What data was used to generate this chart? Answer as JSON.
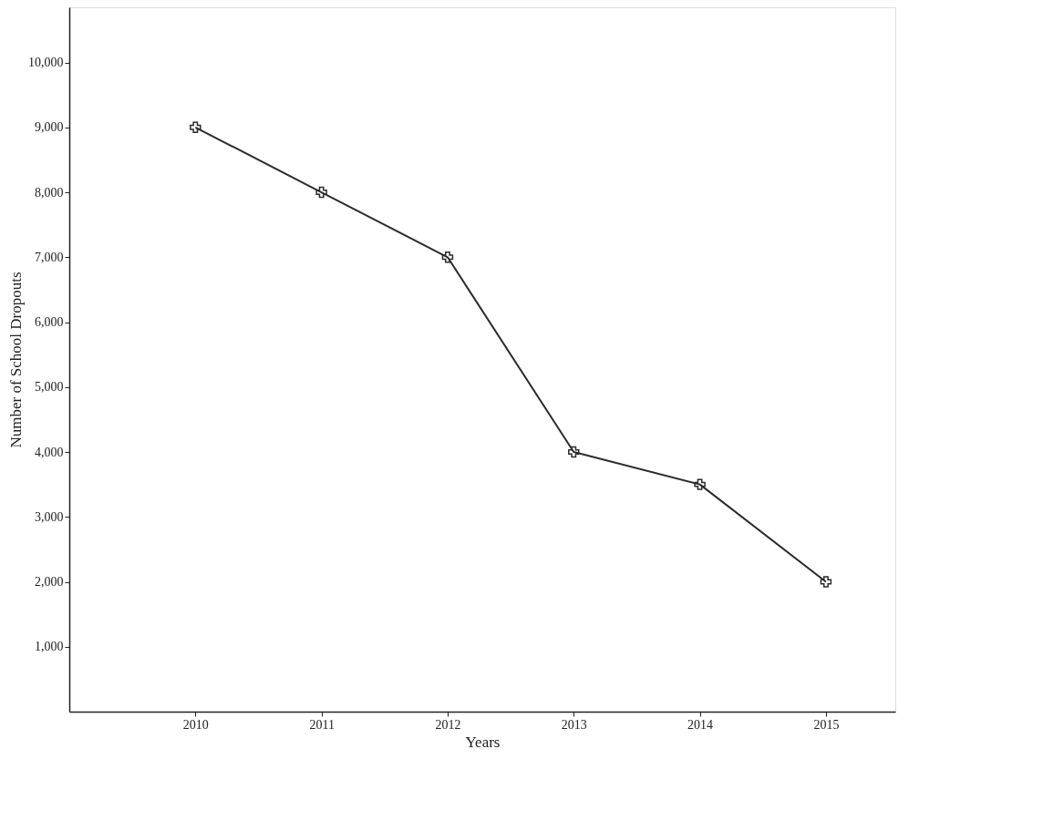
{
  "chart_data": {
    "type": "line",
    "xlabel": "Years",
    "ylabel": "Number of School Dropouts",
    "x": [
      2010,
      2011,
      2012,
      2013,
      2014,
      2015
    ],
    "series": [
      {
        "color": "#2b2b2b",
        "values": [
          9000,
          8000,
          7000,
          4000,
          3500,
          2000
        ]
      }
    ],
    "xlim": [
      2009,
      2015.55
    ],
    "xticks": [
      2010,
      2011,
      2012,
      2013,
      2014,
      2015
    ],
    "ylim": [
      0,
      10850
    ],
    "yticks": [
      {
        "value": 1000,
        "label": "1,000"
      },
      {
        "value": 2000,
        "label": "2,000"
      },
      {
        "value": 3000,
        "label": "3,000"
      },
      {
        "value": 4000,
        "label": "4,000"
      },
      {
        "value": 5000,
        "label": "5,000"
      },
      {
        "value": 6000,
        "label": "6,000"
      },
      {
        "value": 7000,
        "label": "7,000"
      },
      {
        "value": 8000,
        "label": "8,000"
      },
      {
        "value": 9000,
        "label": "9,000"
      },
      {
        "value": 10000,
        "label": "10,000"
      }
    ],
    "grid": false,
    "marker": "cross",
    "line_style": "solid"
  }
}
